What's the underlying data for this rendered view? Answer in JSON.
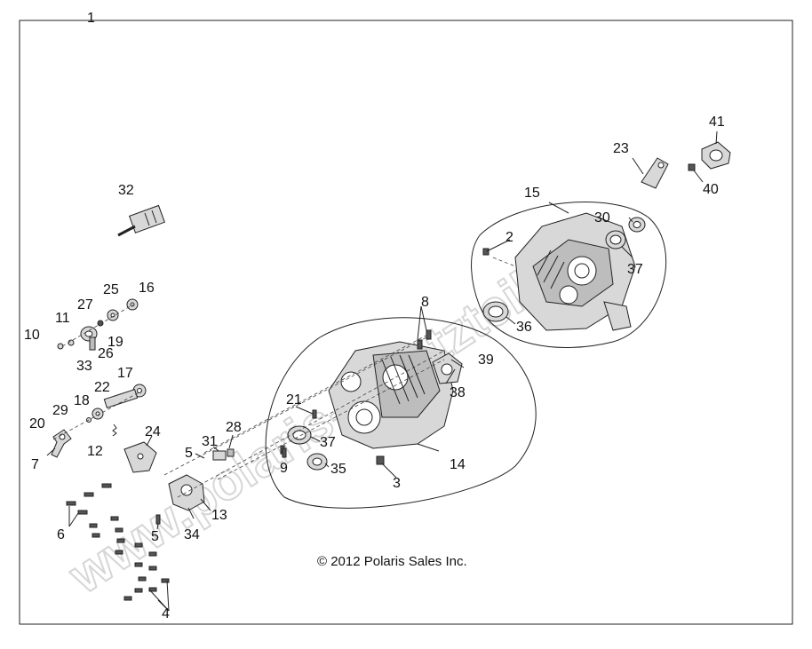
{
  "copyright": "© 2012 Polaris Sales Inc.",
  "watermark": "www.polaris-ersatzteile.de",
  "callouts": {
    "c1": "1",
    "c2": "2",
    "c3": "3",
    "c4": "4",
    "c5a": "5",
    "c5b": "5",
    "c6": "6",
    "c7": "7",
    "c8": "8",
    "c9": "9",
    "c10": "10",
    "c11": "11",
    "c12": "12",
    "c13": "13",
    "c14": "14",
    "c15": "15",
    "c16": "16",
    "c17": "17",
    "c18": "18",
    "c19": "19",
    "c20": "20",
    "c21": "21",
    "c22": "22",
    "c23": "23",
    "c24": "24",
    "c25": "25",
    "c26": "26",
    "c27": "27",
    "c28": "28",
    "c29": "29",
    "c30": "30",
    "c31": "31",
    "c32": "32",
    "c33": "33",
    "c34": "34",
    "c35": "35",
    "c36": "36",
    "c37a": "37",
    "c37b": "37",
    "c38": "38",
    "c39": "39",
    "c40": "40",
    "c41": "41"
  }
}
